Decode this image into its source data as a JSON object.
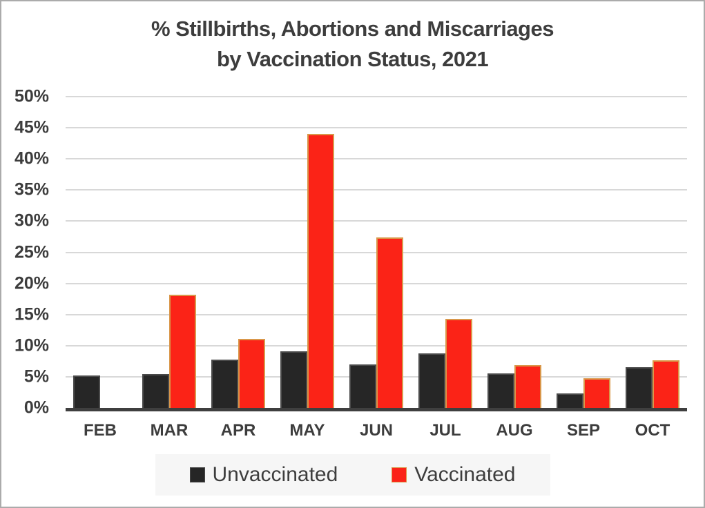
{
  "title": {
    "line1": "% Stillbirths, Abortions and Miscarriages",
    "line2": "by Vaccination Status, 2021"
  },
  "chart_data": {
    "type": "bar",
    "title": "% Stillbirths, Abortions and Miscarriages by Vaccination Status, 2021",
    "categories": [
      "FEB",
      "MAR",
      "APR",
      "MAY",
      "JUN",
      "JUL",
      "AUG",
      "SEP",
      "OCT"
    ],
    "series": [
      {
        "name": "Unvaccinated",
        "color": "#262626",
        "border_color": "#4a4a4a",
        "values": [
          5.2,
          5.4,
          7.8,
          9.1,
          7.0,
          8.8,
          5.5,
          2.3,
          6.5
        ]
      },
      {
        "name": "Vaccinated",
        "color": "#fb2317",
        "border_color": "#d9974a",
        "values": [
          0,
          18.2,
          11.1,
          44.0,
          27.4,
          14.3,
          6.9,
          4.8,
          7.7
        ]
      }
    ],
    "xlabel": "",
    "ylabel": "",
    "ylim": [
      0,
      50
    ],
    "ytick_step": 5,
    "yticks": [
      "0%",
      "5%",
      "10%",
      "15%",
      "20%",
      "25%",
      "30%",
      "35%",
      "40%",
      "45%",
      "50%"
    ],
    "grid": "horizontal",
    "legend_position": "bottom",
    "colors": {
      "text": "#3d3d3d",
      "gridline": "#d8d8d8",
      "axis_line": "#3f3f3f",
      "legend_background": "#f6f6f6",
      "frame_border": "#ababab",
      "background": "#ffffff"
    }
  }
}
